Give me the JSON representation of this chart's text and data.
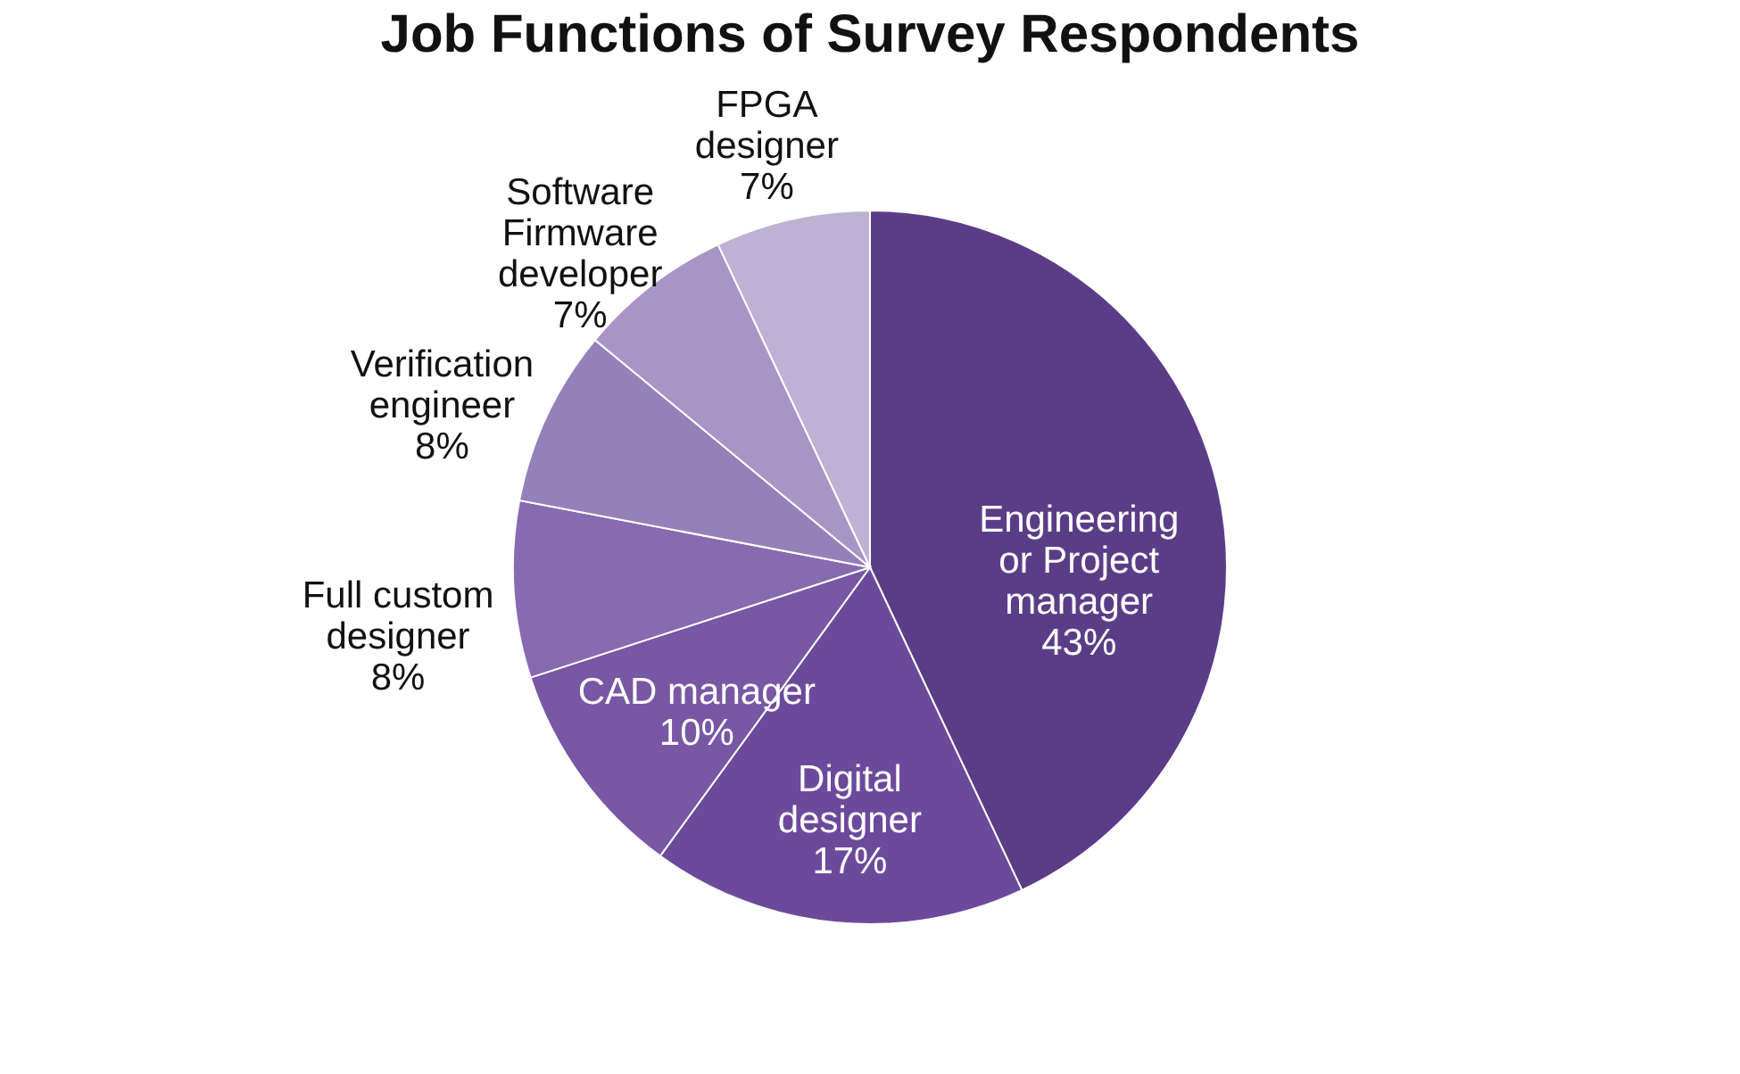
{
  "chart_data": {
    "type": "pie",
    "title": "Job Functions of Survey Respondents",
    "categories": [
      "Engineering or Project manager",
      "Digital designer",
      "CAD manager",
      "Full custom designer",
      "Verification engineer",
      "Software Firmware developer",
      "FPGA designer"
    ],
    "values": [
      43,
      17,
      10,
      8,
      8,
      7,
      7
    ],
    "colors": [
      "#5b3d87",
      "#6c4a9b",
      "#7857a4",
      "#876aaf",
      "#9680b9",
      "#a995c5",
      "#bfb1d4"
    ],
    "value_labels": [
      "43%",
      "17%",
      "10%",
      "8%",
      "8%",
      "7%",
      "7%"
    ],
    "legend": false
  }
}
